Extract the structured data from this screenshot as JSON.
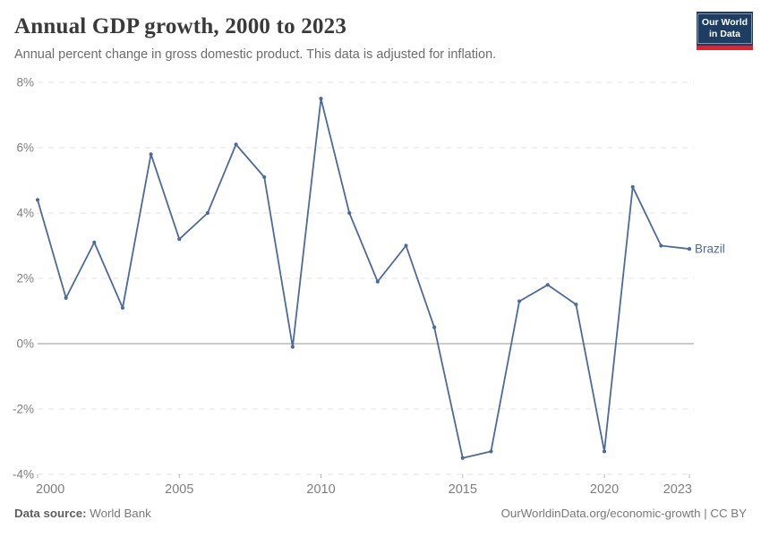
{
  "header": {
    "title": "Annual GDP growth, 2000 to 2023",
    "subtitle": "Annual percent change in gross domestic product. This data is adjusted for inflation.",
    "logo": {
      "line1": "Our World",
      "line2": "in Data",
      "bg_color": "#1d3d63",
      "accent_color": "#e0232e"
    }
  },
  "chart_data": {
    "type": "line",
    "title": "Annual GDP growth, 2000 to 2023",
    "xlabel": "",
    "ylabel": "",
    "x": [
      2000,
      2001,
      2002,
      2003,
      2004,
      2005,
      2006,
      2007,
      2008,
      2009,
      2010,
      2011,
      2012,
      2013,
      2014,
      2015,
      2016,
      2017,
      2018,
      2019,
      2020,
      2021,
      2022,
      2023
    ],
    "series": [
      {
        "name": "Brazil",
        "color": "#4c6a9c",
        "values": [
          4.4,
          1.4,
          3.1,
          1.1,
          5.8,
          3.2,
          4.0,
          6.1,
          5.1,
          -0.1,
          7.5,
          4.0,
          1.9,
          3.0,
          0.5,
          -3.5,
          -3.3,
          1.3,
          1.8,
          1.2,
          -3.3,
          4.8,
          3.0,
          2.9
        ]
      }
    ],
    "ylim": [
      -4,
      8
    ],
    "yticks": [
      8,
      6,
      4,
      2,
      0,
      -2,
      -4
    ],
    "ytick_suffix": "%",
    "xticks": [
      2000,
      2005,
      2010,
      2015,
      2020,
      2023
    ],
    "grid": "horizontal dashed gridlines, solid zero line",
    "legend_position": "end-of-line label"
  },
  "footer": {
    "datasource_label": "Data source:",
    "datasource_value": "World Bank",
    "rights": "OurWorldinData.org/economic-growth | CC BY"
  }
}
